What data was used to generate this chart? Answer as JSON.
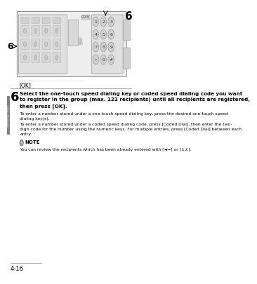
{
  "page_number": "4-16",
  "chapter_label": "Sending Faxes",
  "step_number": "6",
  "step_number_top_right": "6",
  "step_number_diagram": "6",
  "step_label_ok": "[OK]",
  "header_line1": "Select the one-touch speed dialing key or coded speed dialing code you want",
  "header_line2": "to register in the group (max. 122 recipients) until all recipients are registered,",
  "header_line3": "then press [OK].",
  "para1_line1": "To enter a number stored under a one-touch speed dialing key, press the desired one-touch speed",
  "para1_line2": "dialing key(s).",
  "para2_line1": "To enter a number stored under a coded speed dialing code, press [Coded Dial], then enter the two-",
  "para2_line2": "digit code for the number using the numeric keys. For multiple entries, press [Coded Dial] between each",
  "para2_line3": "entry.",
  "note_label": "NOTE",
  "note_text": "You can review the recipients which has been already entered with [◄−] or [±±].",
  "bg_color": "#ffffff",
  "text_color": "#000000",
  "gray_tab_color": "#808080",
  "divider_color": "#000000"
}
